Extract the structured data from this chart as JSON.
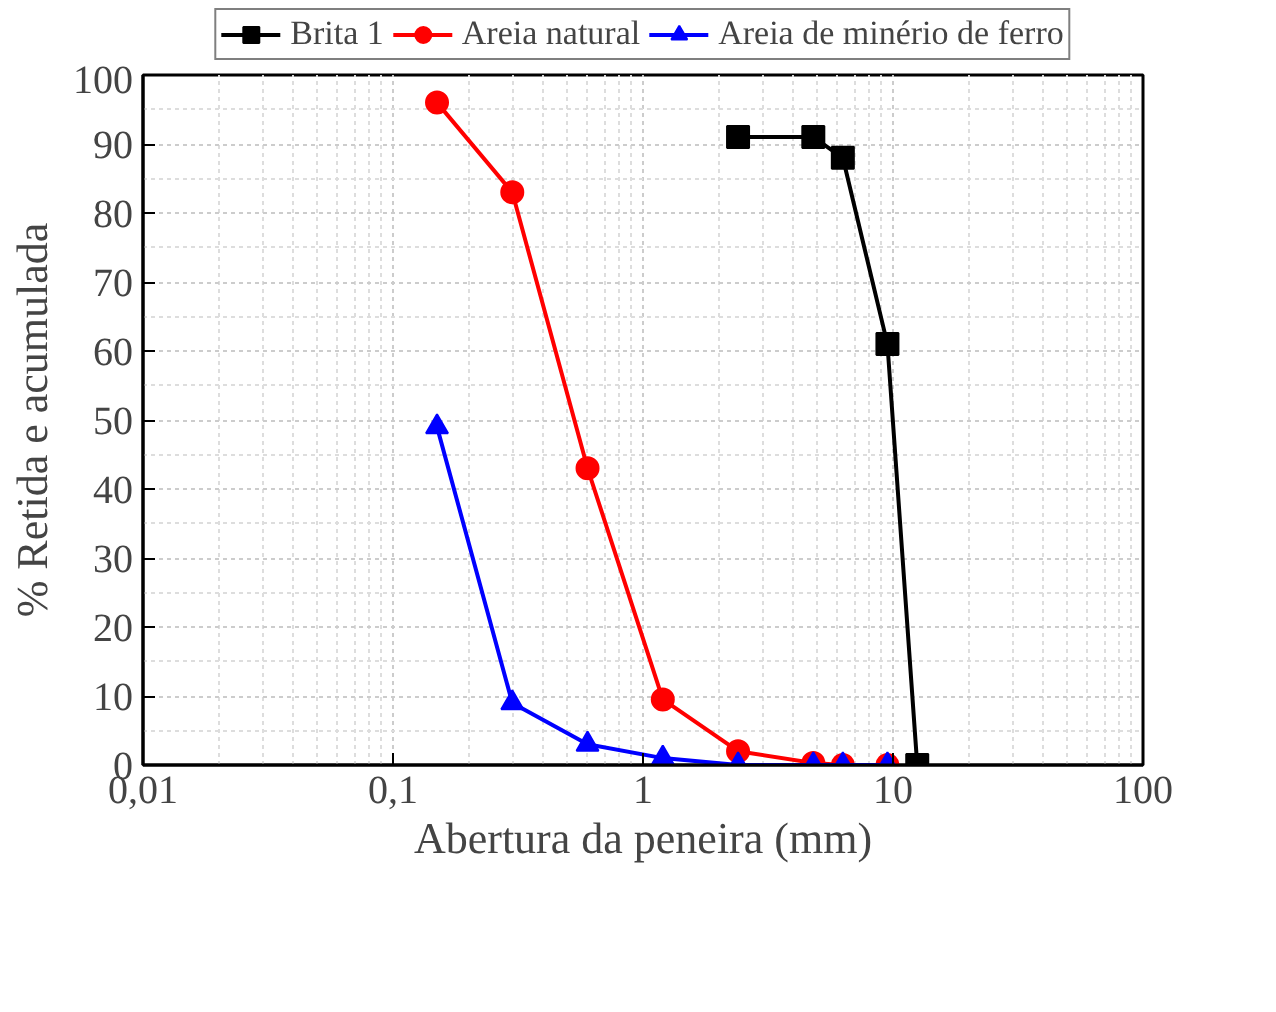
{
  "chart_data": {
    "type": "line",
    "xlabel": "Abertura da peneira (mm)",
    "ylabel": "% Retida e acumulada",
    "log": "x",
    "xlim": [
      0.01,
      100
    ],
    "xticks": [
      {
        "value": 0.01,
        "label": "0,01"
      },
      {
        "value": 0.1,
        "label": "0,1"
      },
      1,
      10,
      100
    ],
    "ylim": [
      0,
      100
    ],
    "yticks": [
      0,
      10,
      20,
      30,
      40,
      50,
      60,
      70,
      80,
      90,
      100
    ],
    "grid": true,
    "legend": "top",
    "line_style": "solid",
    "series": [
      {
        "name": "Brita 1",
        "color": "#000000",
        "marker": "square",
        "x": [
          2.4,
          4.8,
          6.3,
          9.5,
          12.5
        ],
        "values": [
          91,
          91,
          88,
          61,
          0
        ]
      },
      {
        "name": "Areia natural",
        "color": "#ff0000",
        "marker": "circle",
        "x": [
          0.15,
          0.3,
          0.6,
          1.2,
          2.4,
          4.8,
          6.3,
          9.5
        ],
        "values": [
          96,
          83,
          43,
          9.5,
          2,
          0.3,
          0,
          0
        ]
      },
      {
        "name": "Areia de minério de ferro",
        "color": "#0000ff",
        "marker": "triangle",
        "x": [
          0.15,
          0.3,
          0.6,
          1.2,
          2.4,
          4.8,
          6.3,
          9.5
        ],
        "values": [
          49,
          9,
          3,
          1,
          0,
          0,
          0,
          0
        ]
      }
    ]
  }
}
